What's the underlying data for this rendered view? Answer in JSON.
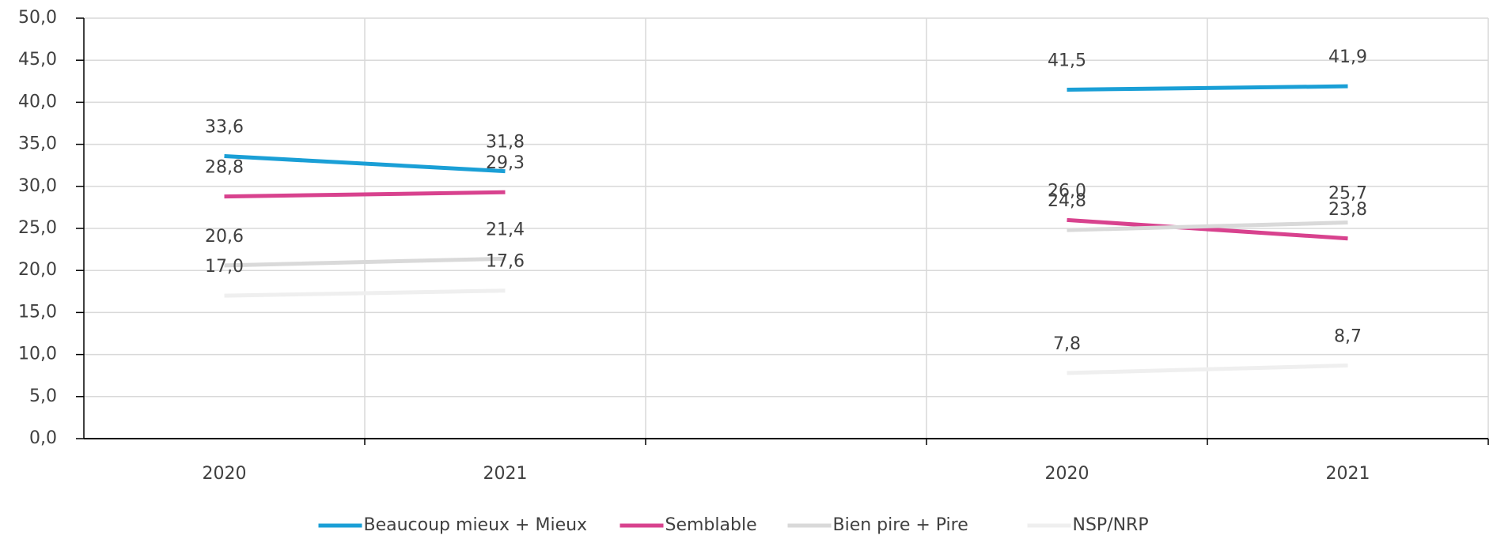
{
  "chart_data": {
    "type": "line",
    "categories": [
      "2020",
      "2021",
      null,
      "2020",
      "2021"
    ],
    "series": [
      {
        "name": "Beaucoup mieux + Mieux",
        "color": "#1a9fd6",
        "values": [
          33.6,
          31.8,
          null,
          41.5,
          41.9
        ],
        "value_labels": [
          "33,6",
          "31,8",
          null,
          "41,5",
          "41,9"
        ]
      },
      {
        "name": "Semblable",
        "color": "#d8428e",
        "values": [
          28.8,
          29.3,
          null,
          26.0,
          23.8
        ],
        "value_labels": [
          "28,8",
          "29,3",
          null,
          "26,0",
          "23,8"
        ]
      },
      {
        "name": "Bien pire + Pire",
        "color": "#d9d9d9",
        "values": [
          20.6,
          21.4,
          null,
          24.8,
          25.7
        ],
        "value_labels": [
          "20,6",
          "21,4",
          null,
          "24,8",
          "25,7"
        ]
      },
      {
        "name": "NSP/NRP",
        "color": "#efefef",
        "values": [
          17.0,
          17.6,
          null,
          7.8,
          8.7
        ],
        "value_labels": [
          "17,0",
          "17,6",
          null,
          "7,8",
          "8,7"
        ]
      }
    ],
    "ylim": [
      0,
      50
    ],
    "yticks": [
      {
        "value": 0,
        "label": "0,0"
      },
      {
        "value": 5,
        "label": "5,0"
      },
      {
        "value": 10,
        "label": "10,0"
      },
      {
        "value": 15,
        "label": "15,0"
      },
      {
        "value": 20,
        "label": "20,0"
      },
      {
        "value": 25,
        "label": "25,0"
      },
      {
        "value": 30,
        "label": "30,0"
      },
      {
        "value": 35,
        "label": "35,0"
      },
      {
        "value": 40,
        "label": "40,0"
      },
      {
        "value": 45,
        "label": "45,0"
      },
      {
        "value": 50,
        "label": "50,0"
      }
    ],
    "grid": true,
    "legend": "bottom"
  }
}
